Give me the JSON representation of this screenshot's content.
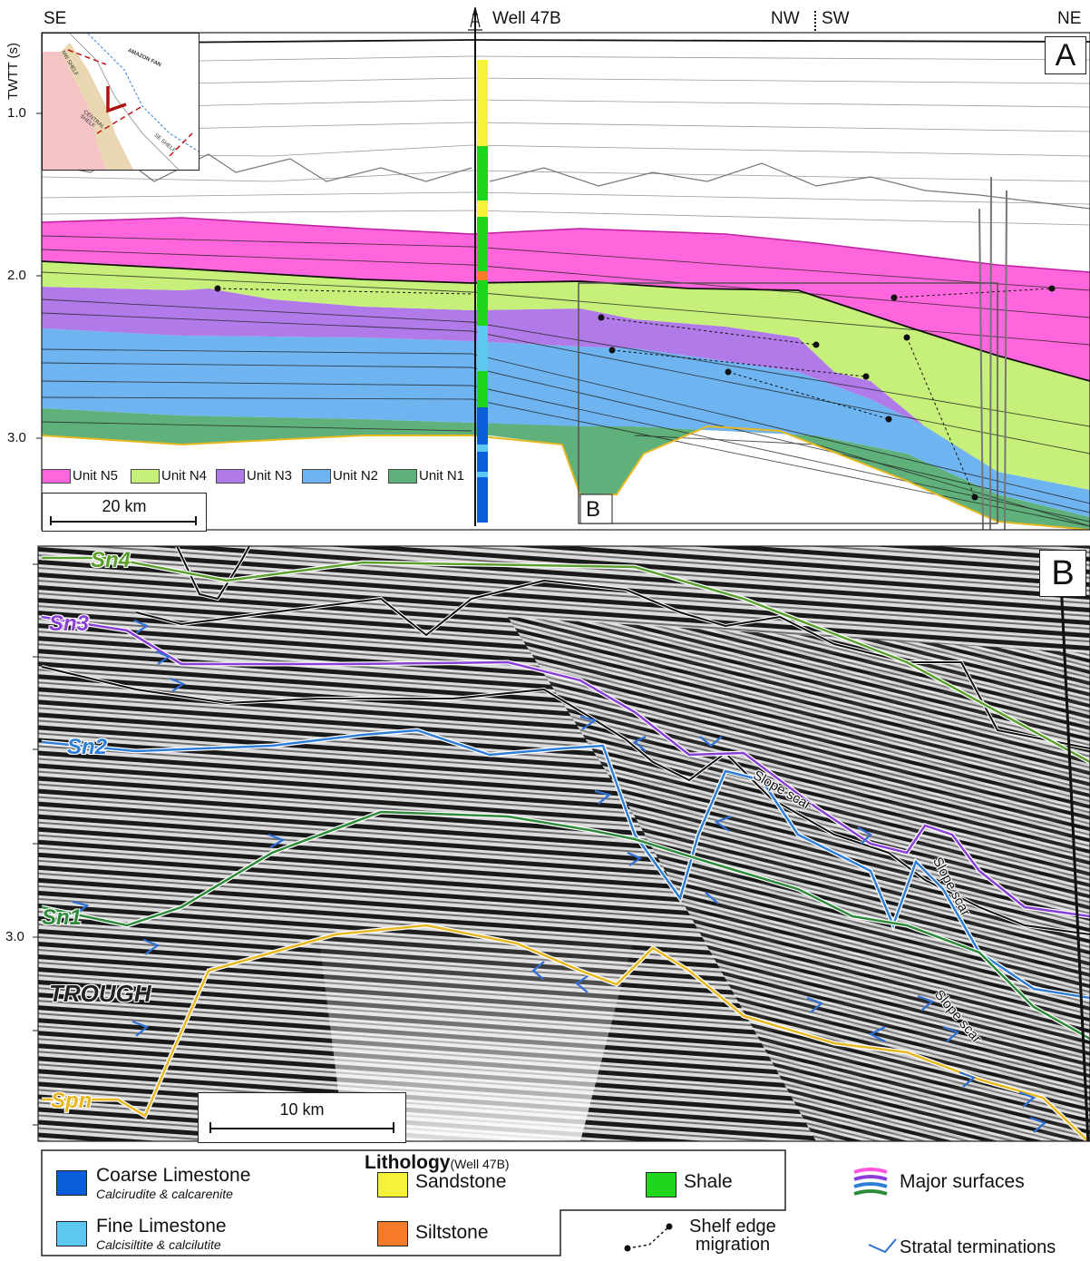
{
  "panel_a": {
    "top_labels": {
      "se": "SE",
      "well": "Well 47B",
      "nw": "NW",
      "sw": "SW",
      "ne": "NE"
    },
    "panel_letter": "A",
    "y_axis": {
      "title": "TWTT (s)",
      "ticks": [
        "1.0",
        "2.0",
        "3.0"
      ]
    },
    "inset_map": {
      "labels": [
        "AMAZON FAN",
        "NW SHELF",
        "CENTRAL SHELF",
        "SE SHELF"
      ]
    },
    "units": [
      {
        "label": "Unit N5",
        "color": "#ff66dd"
      },
      {
        "label": "Unit N4",
        "color": "#c6f07a"
      },
      {
        "label": "Unit N3",
        "color": "#b07ae8"
      },
      {
        "label": "Unit N2",
        "color": "#6db4f0"
      },
      {
        "label": "Unit N1",
        "color": "#5fb07a"
      }
    ],
    "scale_bar": "20 km",
    "zoom_box_label": "B"
  },
  "panel_b": {
    "panel_letter": "B",
    "y_axis": {
      "ticks": [
        "3.0"
      ]
    },
    "surfaces": [
      {
        "label": "Sn4",
        "color": "#5aa02c"
      },
      {
        "label": "Sn3",
        "color": "#8a3fd6"
      },
      {
        "label": "Sn2",
        "color": "#2f7fd6"
      },
      {
        "label": "Sn1",
        "color": "#2e8b3a"
      },
      {
        "label": "Spn",
        "color": "#e8b820"
      }
    ],
    "trough_label": "TROUGH",
    "slope_scars": [
      "Slope scar",
      "Slope scar",
      "Slope scar"
    ],
    "scale_bar": "10 km"
  },
  "legend": {
    "title": "Lithology",
    "title_note": "(Well 47B)",
    "items": [
      {
        "label": "Coarse Limestone",
        "sub": "Calcirudite & calcarenite",
        "color": "#0b5ed7"
      },
      {
        "label": "Fine Limestone",
        "sub": "Calcisiltite & calcilutite",
        "color": "#5cc8f0"
      },
      {
        "label": "Sandstone",
        "color": "#f6f23a"
      },
      {
        "label": "Siltstone",
        "color": "#f57a2a"
      },
      {
        "label": "Shale",
        "color": "#1fd61f"
      }
    ],
    "major_surfaces": "Major surfaces",
    "shelf_edge": [
      "Shelf edge",
      "migration"
    ],
    "stratal": "Stratal terminations"
  }
}
